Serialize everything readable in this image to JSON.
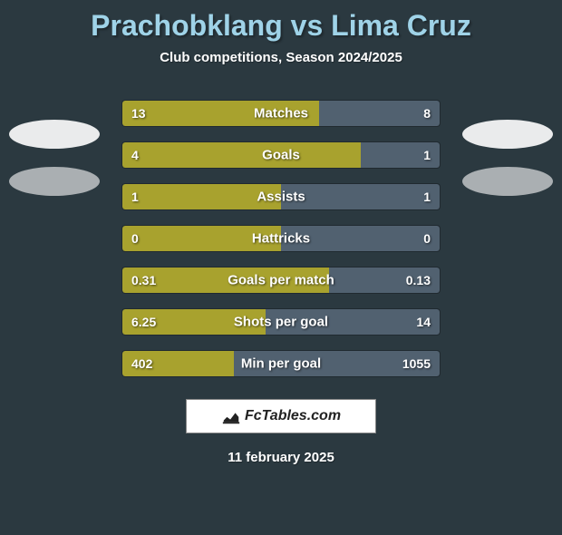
{
  "header": {
    "title": "Prachobklang vs Lima Cruz",
    "subtitle": "Club competitions, Season 2024/2025"
  },
  "stats": [
    {
      "label": "Matches",
      "left_val": "13",
      "right_val": "8",
      "left_pct": 62,
      "right_pct": 38
    },
    {
      "label": "Goals",
      "left_val": "4",
      "right_val": "1",
      "left_pct": 75,
      "right_pct": 25
    },
    {
      "label": "Assists",
      "left_val": "1",
      "right_val": "1",
      "left_pct": 50,
      "right_pct": 50
    },
    {
      "label": "Hattricks",
      "left_val": "0",
      "right_val": "0",
      "left_pct": 50,
      "right_pct": 50
    },
    {
      "label": "Goals per match",
      "left_val": "0.31",
      "right_val": "0.13",
      "left_pct": 65,
      "right_pct": 35
    },
    {
      "label": "Shots per goal",
      "left_val": "6.25",
      "right_val": "14",
      "left_pct": 45,
      "right_pct": 55
    },
    {
      "label": "Min per goal",
      "left_val": "402",
      "right_val": "1055",
      "left_pct": 35,
      "right_pct": 65
    }
  ],
  "colors": {
    "left_bar": "#a8a22e",
    "right_bar": "#516170",
    "background": "#2b3940",
    "title_color": "#9fd3e8"
  },
  "brand": "FcTables.com",
  "date": "11 february 2025"
}
